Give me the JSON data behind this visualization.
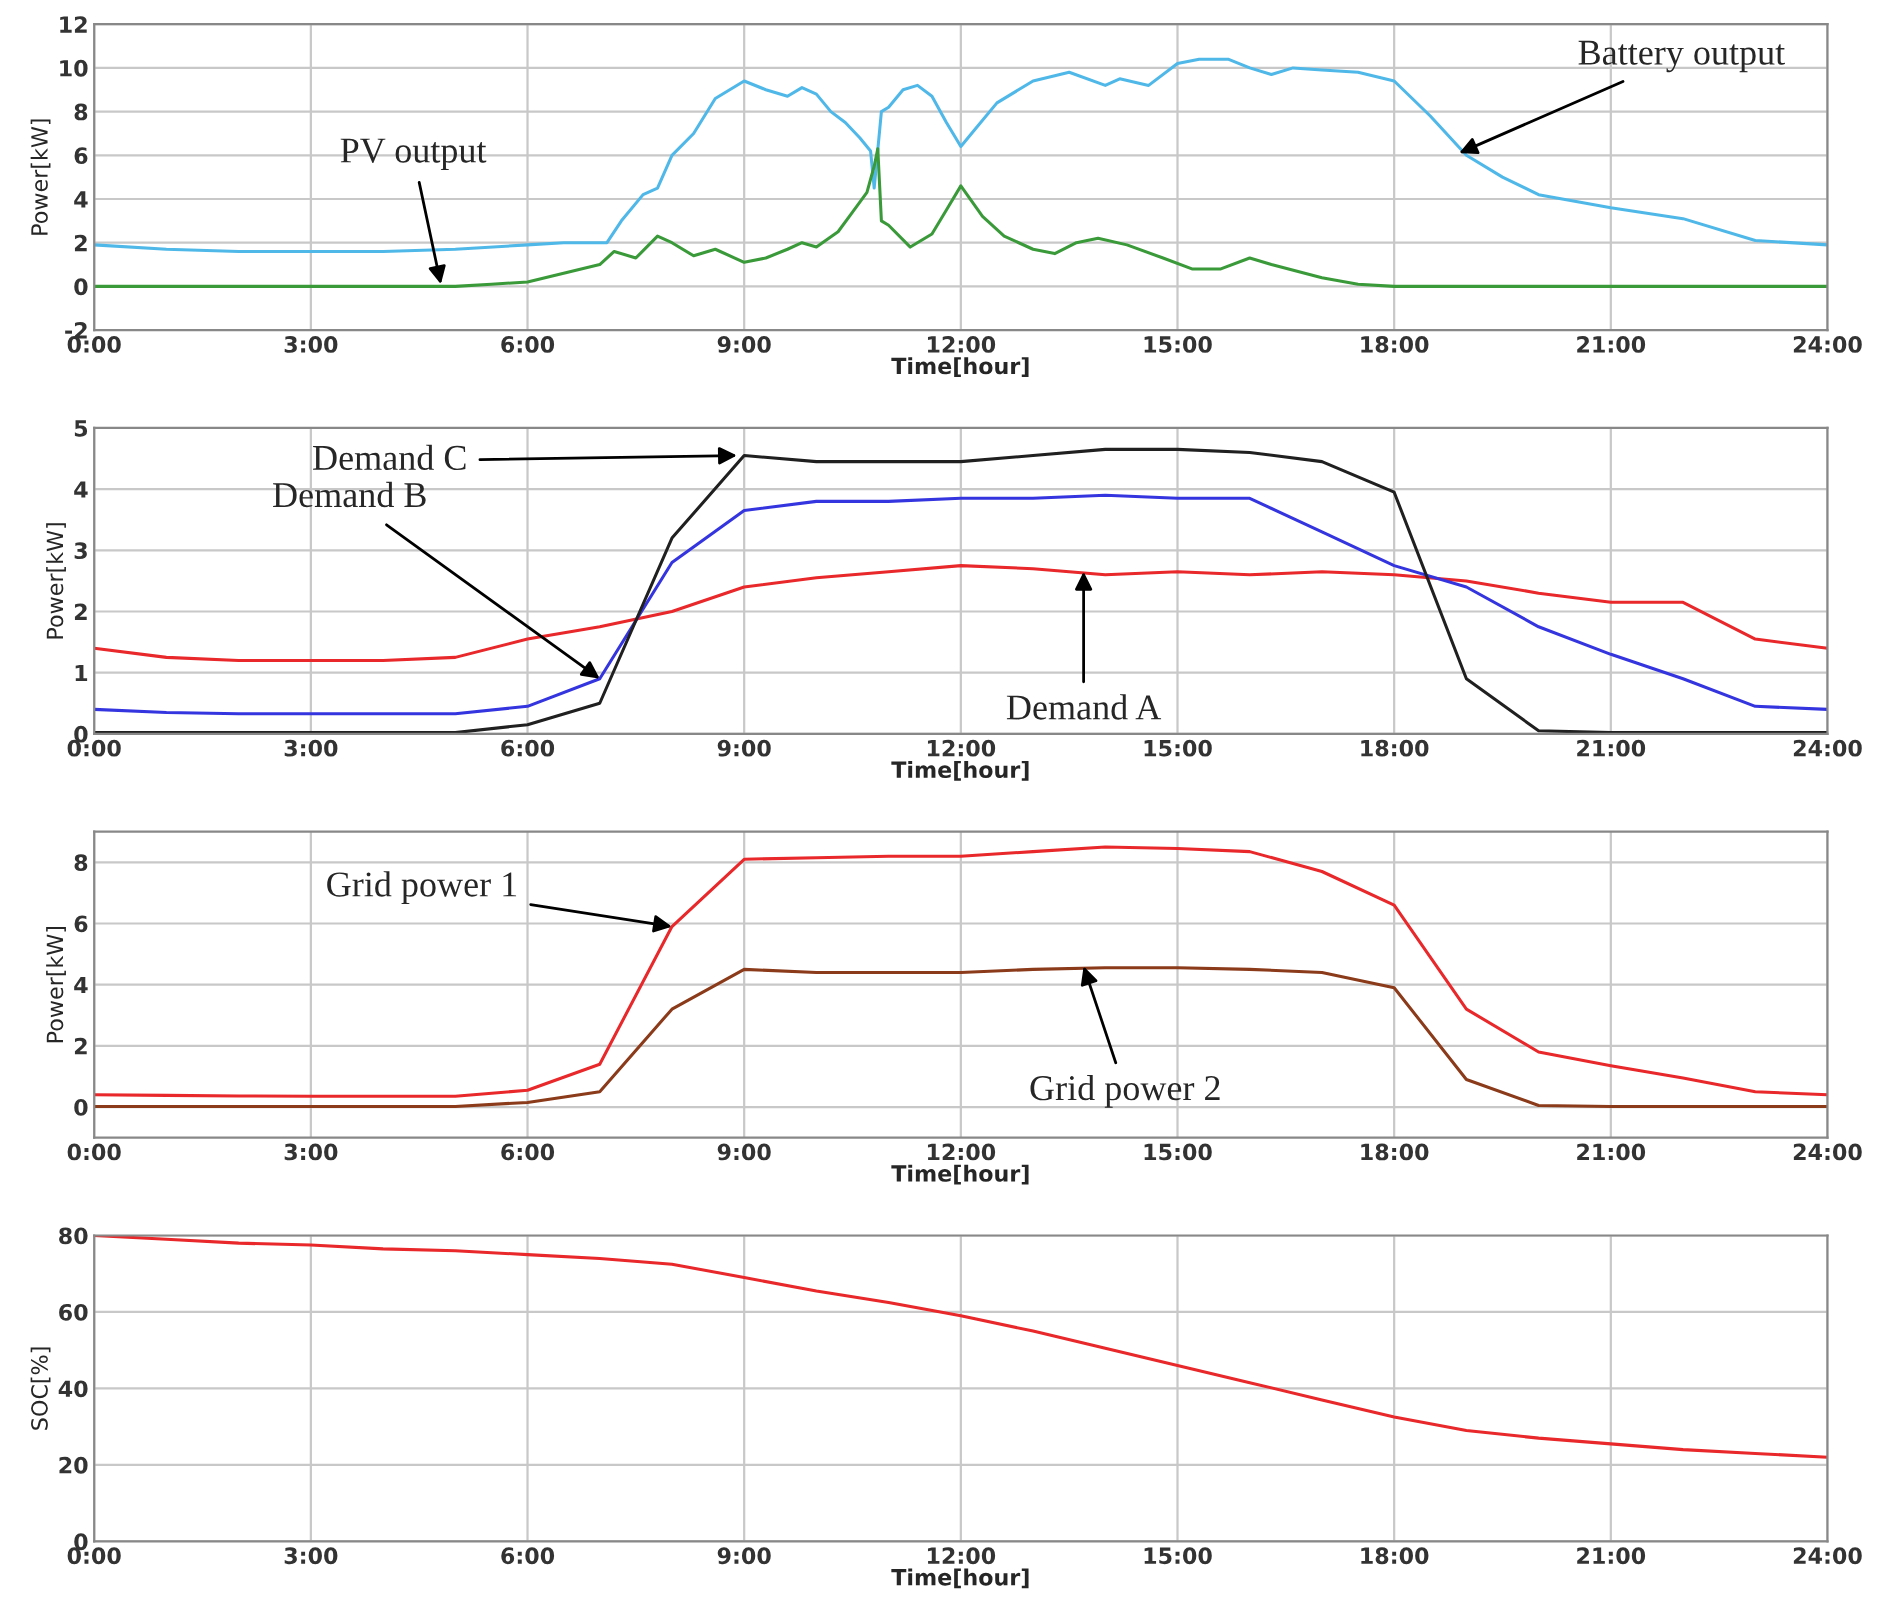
{
  "chart_data": [
    {
      "type": "line",
      "xlabel": "Time[hour]",
      "ylabel": "Power[kW]",
      "grid": true,
      "xlim": [
        0,
        24
      ],
      "xticks": [
        {
          "value": 0,
          "label": "0:00"
        },
        {
          "value": 3,
          "label": "3:00"
        },
        {
          "value": 6,
          "label": "6:00"
        },
        {
          "value": 9,
          "label": "9:00"
        },
        {
          "value": 12,
          "label": "12:00"
        },
        {
          "value": 15,
          "label": "15:00"
        },
        {
          "value": 18,
          "label": "18:00"
        },
        {
          "value": 21,
          "label": "21:00"
        },
        {
          "value": 24,
          "label": "24:00"
        }
      ],
      "ylim": [
        -2,
        12
      ],
      "yticks": [
        -2,
        0,
        2,
        4,
        6,
        8,
        10,
        12
      ],
      "series": [
        {
          "color": "#4fb8e8",
          "x": [
            0,
            1,
            2,
            3,
            4,
            5,
            6,
            6.5,
            7,
            7.1,
            7.3,
            7.6,
            7.8,
            8.0,
            8.3,
            8.6,
            9.0,
            9.3,
            9.6,
            9.8,
            10.0,
            10.2,
            10.4,
            10.6,
            10.75,
            10.8,
            10.9,
            11.0,
            11.2,
            11.4,
            11.6,
            11.8,
            12.0,
            12.2,
            12.5,
            13,
            13.5,
            14,
            14.2,
            14.6,
            15,
            15.3,
            15.7,
            16,
            16.3,
            16.6,
            17,
            17.5,
            18,
            18.5,
            19,
            19.5,
            20,
            21,
            22,
            23,
            24
          ],
          "values": [
            1.9,
            1.7,
            1.6,
            1.6,
            1.6,
            1.7,
            1.9,
            2.0,
            2.0,
            2.0,
            3.0,
            4.2,
            4.5,
            6.0,
            7.0,
            8.6,
            9.4,
            9.0,
            8.7,
            9.1,
            8.8,
            8.0,
            7.5,
            6.8,
            6.2,
            4.5,
            8.0,
            8.2,
            9.0,
            9.2,
            8.7,
            7.5,
            6.4,
            7.2,
            8.4,
            9.4,
            9.8,
            9.2,
            9.5,
            9.2,
            10.2,
            10.4,
            10.4,
            10.0,
            9.7,
            10.0,
            9.9,
            9.8,
            9.4,
            7.8,
            6.0,
            5.0,
            4.2,
            3.6,
            3.1,
            2.1,
            1.9
          ]
        },
        {
          "color": "#3a9a3a",
          "x": [
            0,
            5,
            5.5,
            6,
            6.5,
            7,
            7.2,
            7.5,
            7.8,
            8.0,
            8.3,
            8.6,
            9.0,
            9.3,
            9.6,
            9.8,
            10.0,
            10.3,
            10.5,
            10.7,
            10.8,
            10.85,
            10.9,
            11.0,
            11.3,
            11.6,
            11.8,
            12.0,
            12.3,
            12.6,
            13.0,
            13.3,
            13.6,
            13.9,
            14.3,
            14.8,
            15.2,
            15.6,
            16.0,
            16.3,
            17.0,
            17.5,
            18,
            24
          ],
          "values": [
            0,
            0,
            0.1,
            0.2,
            0.6,
            1.0,
            1.6,
            1.3,
            2.3,
            2.0,
            1.4,
            1.7,
            1.1,
            1.3,
            1.7,
            2.0,
            1.8,
            2.5,
            3.4,
            4.3,
            5.5,
            6.3,
            3.0,
            2.8,
            1.8,
            2.4,
            3.5,
            4.6,
            3.2,
            2.3,
            1.7,
            1.5,
            2.0,
            2.2,
            1.9,
            1.3,
            0.8,
            0.8,
            1.3,
            1.0,
            0.4,
            0.1,
            0,
            0
          ]
        }
      ],
      "annotations": [
        {
          "text": "PV output",
          "x": 4.8,
          "y": 0.1
        },
        {
          "text": "Battery output",
          "x": 18.9,
          "y": 6.1
        }
      ]
    },
    {
      "type": "line",
      "xlabel": "Time[hour]",
      "ylabel": "Power[kW]",
      "grid": true,
      "xlim": [
        0,
        24
      ],
      "xticks": [
        {
          "value": 0,
          "label": "0:00"
        },
        {
          "value": 3,
          "label": "3:00"
        },
        {
          "value": 6,
          "label": "6:00"
        },
        {
          "value": 9,
          "label": "9:00"
        },
        {
          "value": 12,
          "label": "12:00"
        },
        {
          "value": 15,
          "label": "15:00"
        },
        {
          "value": 18,
          "label": "18:00"
        },
        {
          "value": 21,
          "label": "21:00"
        },
        {
          "value": 24,
          "label": "24:00"
        }
      ],
      "ylim": [
        0,
        5
      ],
      "yticks": [
        0,
        1,
        2,
        3,
        4,
        5
      ],
      "x": [
        0,
        1,
        2,
        3,
        4,
        5,
        6,
        7,
        8,
        9,
        10,
        11,
        12,
        13,
        14,
        15,
        16,
        17,
        18,
        19,
        20,
        21,
        22,
        23,
        24
      ],
      "series": [
        {
          "color": "#e8282a",
          "values": [
            1.4,
            1.25,
            1.2,
            1.2,
            1.2,
            1.25,
            1.55,
            1.75,
            2.0,
            2.4,
            2.55,
            2.65,
            2.75,
            2.7,
            2.6,
            2.65,
            2.6,
            2.65,
            2.6,
            2.5,
            2.3,
            2.15,
            2.15,
            1.55,
            1.4
          ]
        },
        {
          "color": "#3535e0",
          "values": [
            0.4,
            0.35,
            0.33,
            0.33,
            0.33,
            0.33,
            0.45,
            0.9,
            2.8,
            3.65,
            3.8,
            3.8,
            3.85,
            3.85,
            3.9,
            3.85,
            3.85,
            3.3,
            2.75,
            2.4,
            1.75,
            1.3,
            0.9,
            0.45,
            0.4
          ]
        },
        {
          "color": "#202020",
          "values": [
            0.02,
            0.02,
            0.02,
            0.02,
            0.02,
            0.02,
            0.15,
            0.5,
            3.2,
            4.55,
            4.45,
            4.45,
            4.45,
            4.55,
            4.65,
            4.65,
            4.6,
            4.45,
            3.95,
            0.9,
            0.05,
            0.02,
            0.02,
            0.02,
            0.02
          ]
        }
      ],
      "annotations": [
        {
          "text": "Demand C",
          "x": 8.9,
          "y": 4.55
        },
        {
          "text": "Demand B",
          "x": 7.0,
          "y": 0.9
        },
        {
          "text": "Demand A",
          "x": 13.7,
          "y": 2.65
        }
      ]
    },
    {
      "type": "line",
      "xlabel": "Time[hour]",
      "ylabel": "Power[kW]",
      "grid": true,
      "xlim": [
        0,
        24
      ],
      "xticks": [
        {
          "value": 0,
          "label": "0:00"
        },
        {
          "value": 3,
          "label": "3:00"
        },
        {
          "value": 6,
          "label": "6:00"
        },
        {
          "value": 9,
          "label": "9:00"
        },
        {
          "value": 12,
          "label": "12:00"
        },
        {
          "value": 15,
          "label": "15:00"
        },
        {
          "value": 18,
          "label": "18:00"
        },
        {
          "value": 21,
          "label": "21:00"
        },
        {
          "value": 24,
          "label": "24:00"
        }
      ],
      "ylim": [
        -1,
        9
      ],
      "yticks": [
        0,
        2,
        4,
        6,
        8
      ],
      "x": [
        0,
        1,
        2,
        3,
        4,
        5,
        6,
        7,
        8,
        9,
        10,
        11,
        12,
        13,
        14,
        15,
        16,
        17,
        18,
        19,
        20,
        21,
        22,
        23,
        24
      ],
      "series": [
        {
          "color": "#e8282a",
          "values": [
            0.4,
            0.38,
            0.36,
            0.35,
            0.35,
            0.35,
            0.55,
            1.4,
            5.9,
            8.1,
            8.15,
            8.2,
            8.2,
            8.35,
            8.5,
            8.45,
            8.35,
            7.7,
            6.6,
            3.2,
            1.8,
            1.35,
            0.95,
            0.5,
            0.4
          ]
        },
        {
          "color": "#8b3a1a",
          "values": [
            0.02,
            0.02,
            0.02,
            0.02,
            0.02,
            0.02,
            0.15,
            0.5,
            3.2,
            4.5,
            4.4,
            4.4,
            4.4,
            4.5,
            4.55,
            4.55,
            4.5,
            4.4,
            3.9,
            0.9,
            0.05,
            0.02,
            0.02,
            0.02,
            0.02
          ]
        }
      ],
      "annotations": [
        {
          "text": "Grid power 1",
          "x": 8.0,
          "y": 5.9
        },
        {
          "text": "Grid power 2",
          "x": 13.7,
          "y": 4.6
        }
      ]
    },
    {
      "type": "line",
      "xlabel": "Time[hour]",
      "ylabel": "SOC[%]",
      "grid": true,
      "xlim": [
        0,
        24
      ],
      "xticks": [
        {
          "value": 0,
          "label": "0:00"
        },
        {
          "value": 3,
          "label": "3:00"
        },
        {
          "value": 6,
          "label": "6:00"
        },
        {
          "value": 9,
          "label": "9:00"
        },
        {
          "value": 12,
          "label": "12:00"
        },
        {
          "value": 15,
          "label": "15:00"
        },
        {
          "value": 18,
          "label": "18:00"
        },
        {
          "value": 21,
          "label": "21:00"
        },
        {
          "value": 24,
          "label": "24:00"
        }
      ],
      "ylim": [
        0,
        80
      ],
      "yticks": [
        0,
        20,
        40,
        60,
        80
      ],
      "x": [
        0,
        1,
        2,
        3,
        4,
        5,
        6,
        7,
        8,
        9,
        10,
        11,
        12,
        13,
        14,
        15,
        16,
        17,
        18,
        19,
        20,
        21,
        22,
        23,
        24
      ],
      "series": [
        {
          "color": "#e8282a",
          "values": [
            80,
            79,
            78,
            77.5,
            76.5,
            76,
            75,
            74,
            72.5,
            69,
            65.5,
            62.5,
            59,
            55,
            50.5,
            46,
            41.5,
            37,
            32.5,
            29,
            27,
            25.5,
            24,
            23,
            22
          ]
        }
      ]
    }
  ]
}
